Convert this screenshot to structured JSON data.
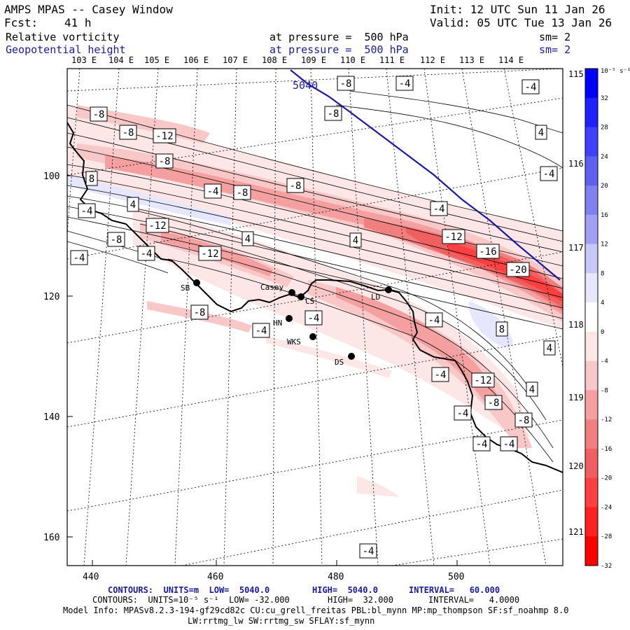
{
  "header": {
    "title": "AMPS MPAS -- Casey Window",
    "init": "Init: 12 UTC Sun 11 Jan 26",
    "fcst_label": "Fcst:",
    "fcst_value": "41 h",
    "valid": "Valid: 05 UTC Tue 13 Jan 26"
  },
  "fields": [
    {
      "name": "Relative vorticity",
      "level": "at pressure =  500 hPa",
      "smooth": "sm= 2",
      "color": "#000000"
    },
    {
      "name": "Geopotential height",
      "level": "at pressure =  500 hPa",
      "smooth": "sm= 2",
      "color": "#1a1aa0"
    }
  ],
  "top_lon_labels": [
    "103 E",
    "104 E",
    "105 E",
    "106 E",
    "107 E",
    "108 E",
    "109 E",
    "110 E",
    "111 E",
    "112 E",
    "113 E",
    "114 E"
  ],
  "right_lon_labels": [
    "115 E",
    "116 E",
    "117 E",
    "118 E",
    "119 E",
    "120 E",
    "121 E"
  ],
  "x_ticks": [
    "440",
    "460",
    "480",
    "500"
  ],
  "y_ticks": [
    "100",
    "120",
    "140",
    "160"
  ],
  "stations": [
    "SB",
    "Casey",
    "CS",
    "LD",
    "HN",
    "WKS",
    "DS"
  ],
  "colorbar": {
    "unit": "10⁻⁵ s⁻¹",
    "labels": [
      "32",
      "28",
      "24",
      "20",
      "16",
      "12",
      "8",
      "4",
      "0",
      "-4",
      "-8",
      "-12",
      "-16",
      "-20",
      "-24",
      "-28",
      "-32"
    ],
    "colors": [
      "#0000ff",
      "#2020ff",
      "#4040ff",
      "#6060f0",
      "#8080f0",
      "#a0a0f4",
      "#c8c8f8",
      "#e6e6fc",
      "#ffffff",
      "#fce6e6",
      "#f8c8c8",
      "#f4a0a0",
      "#f08080",
      "#f06060",
      "#ff4040",
      "#ff2020",
      "#ff0000"
    ]
  },
  "contour_labels": [
    "5040",
    "-8",
    "-4",
    "-4",
    "-8",
    "-8",
    "-8",
    "-12",
    "8",
    "-4",
    "-8",
    "-8",
    "-12",
    "-4",
    "-4",
    "-8",
    "-8",
    "4",
    "4",
    "4",
    "-4",
    "-4",
    "-12",
    "-12",
    "4",
    "-16",
    "-20",
    "-8",
    "-4",
    "-4",
    "-4",
    "8",
    "-4",
    "-12",
    "4",
    "4",
    "-8",
    "-8",
    "-4",
    "-4",
    "-4",
    "-4",
    "-4"
  ],
  "footer": {
    "line1_label": "CONTOURS:  UNITS=m  LOW=  5040.0",
    "line1_high": "HIGH=  5040.0",
    "line1_interval": "INTERVAL=   60.000",
    "line2_label": "CONTOURS:  UNITS=10⁻⁵ s⁻¹  LOW= -32.000",
    "line2_high": "HIGH=  32.000",
    "line2_interval": "INTERVAL=   4.0000",
    "line3": "Model Info: MPASv8.2.3-194-gf29cd82c CU:cu_grell_freitas PBL:bl_mynn MP:mp_thompson SF:sf_noahmp 8.0",
    "line4": "LW:rrtmg_lw SW:rrtmg_sw SFLAY:sf_mynn"
  }
}
